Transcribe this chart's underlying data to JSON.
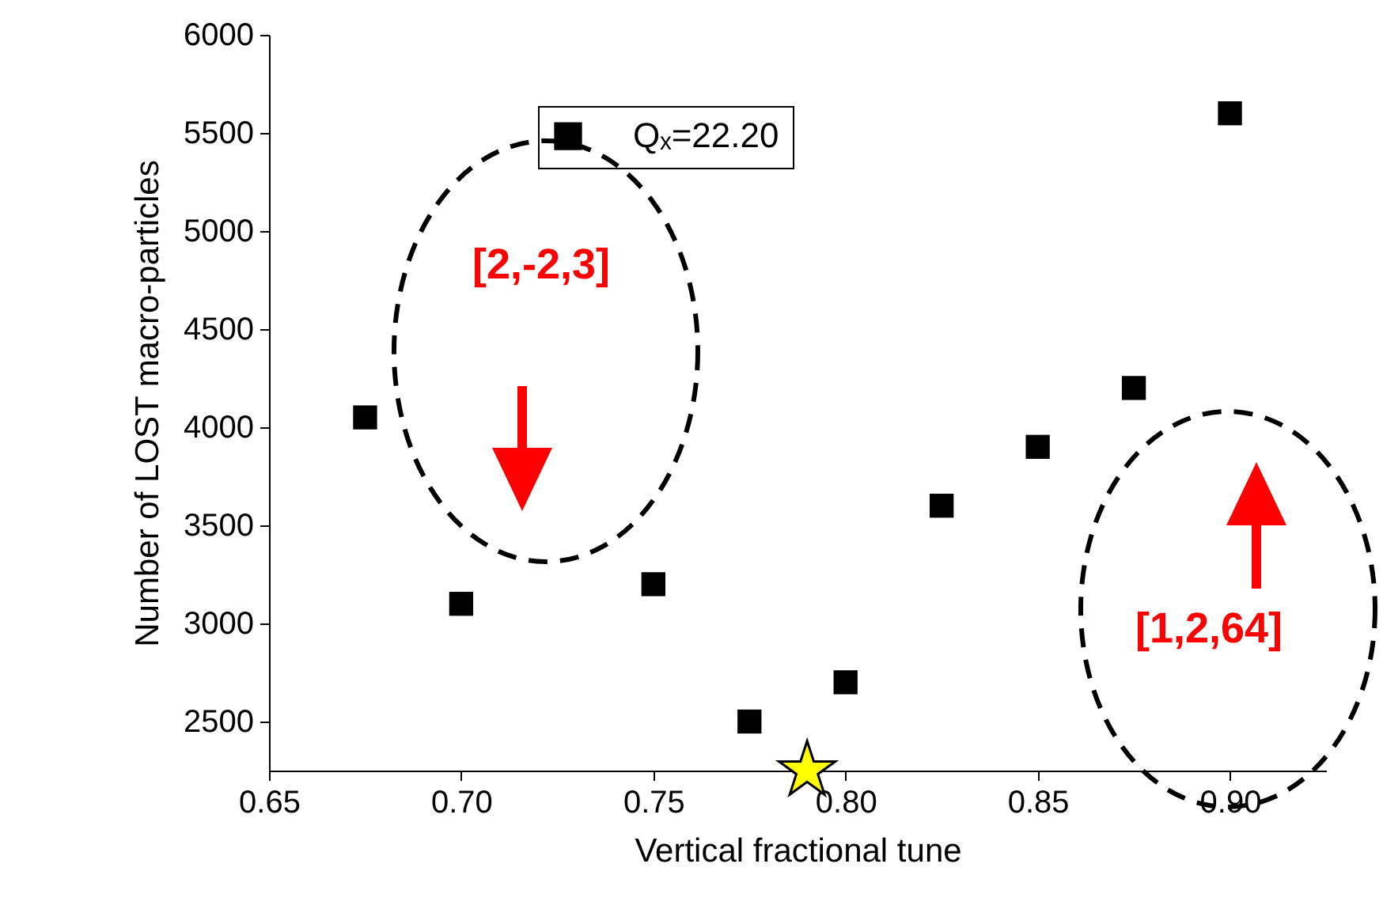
{
  "chart_data": {
    "type": "scatter",
    "xlabel": "Vertical fractional tune",
    "ylabel": "Number of LOST macro-particles",
    "xlim": [
      0.65,
      0.925
    ],
    "ylim": [
      2250,
      6000
    ],
    "xticks": [
      {
        "value": 0.65,
        "label": "0.65"
      },
      {
        "value": 0.7,
        "label": "0.70"
      },
      {
        "value": 0.75,
        "label": "0.75"
      },
      {
        "value": 0.8,
        "label": "0.80"
      },
      {
        "value": 0.85,
        "label": "0.85"
      },
      {
        "value": 0.9,
        "label": "0.90"
      }
    ],
    "yticks": [
      2500,
      3000,
      3500,
      4000,
      4500,
      5000,
      5500,
      6000
    ],
    "grid": false,
    "legend": "top",
    "series": [
      {
        "name": "Qₓ=22.20",
        "color": "#000000",
        "marker": "square",
        "x": [
          0.675,
          0.7,
          0.75,
          0.775,
          0.8,
          0.825,
          0.85,
          0.875,
          0.9
        ],
        "values": [
          4050,
          3100,
          3200,
          2500,
          2700,
          3600,
          3900,
          4200,
          5600
        ]
      },
      {
        "color": "#ffff00",
        "marker": "star",
        "x": [
          0.79
        ],
        "values": [
          2250
        ]
      }
    ],
    "annotations": [
      "[2,-2,3]",
      "[1,2,64]"
    ]
  }
}
